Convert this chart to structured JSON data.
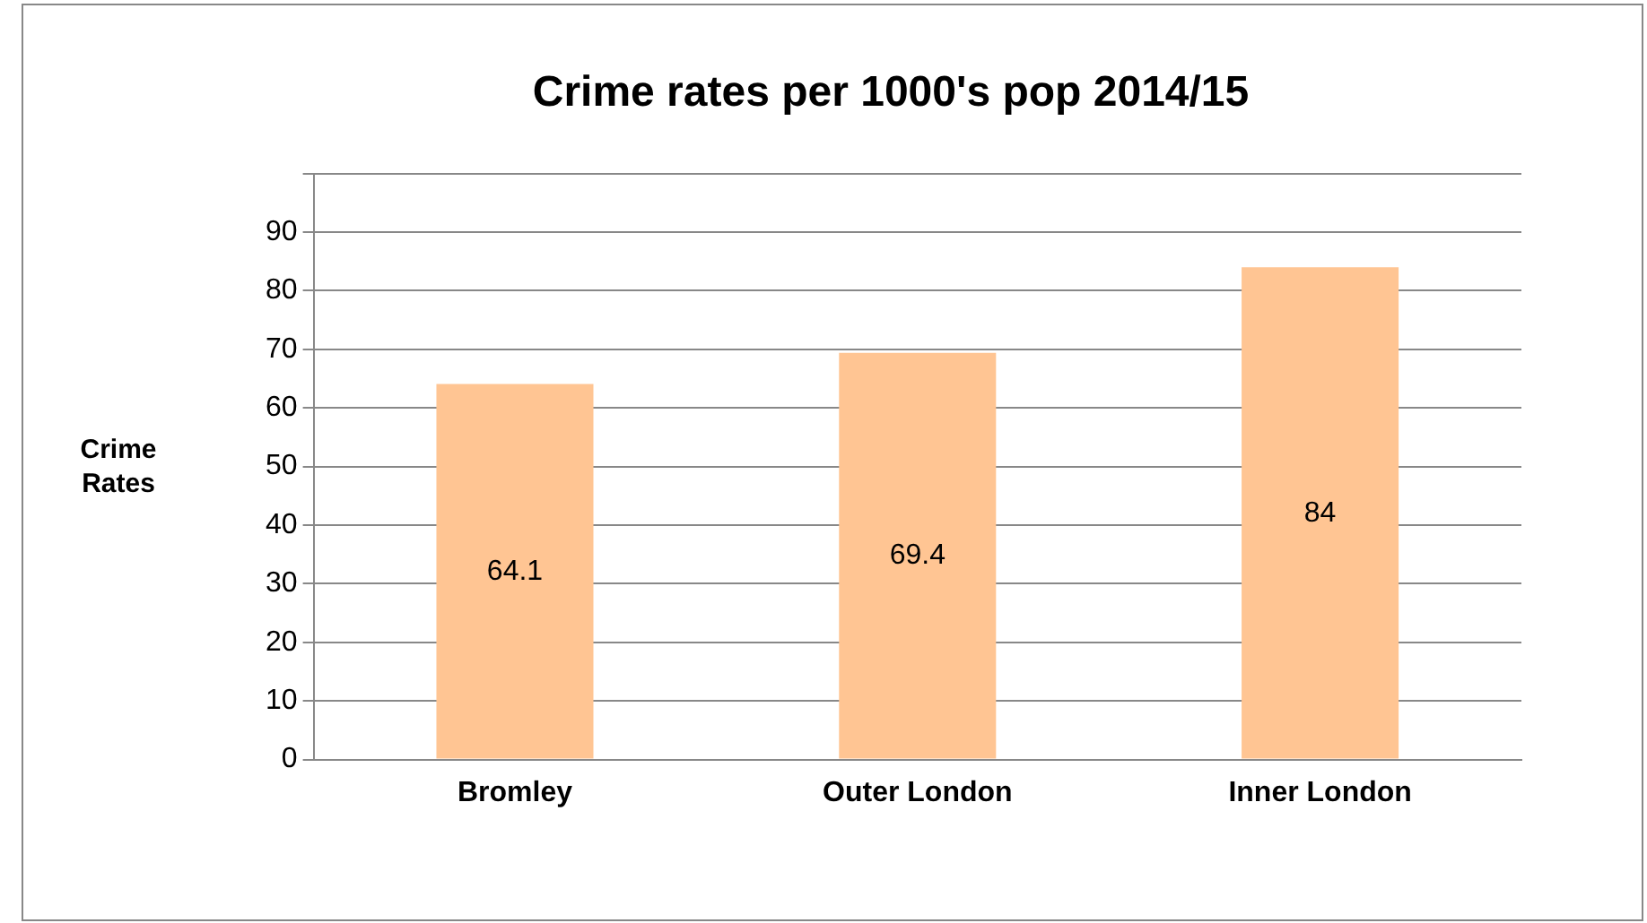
{
  "chart_data": {
    "type": "bar",
    "title": "Crime rates per 1000's pop 2014/15",
    "ylabel": "Crime Rates",
    "categories": [
      "Bromley",
      "Outer London",
      "Inner London"
    ],
    "values": [
      64.1,
      69.4,
      84
    ],
    "color": "#ffc593",
    "ylim": [
      0,
      100
    ],
    "yticks": [
      0,
      10,
      20,
      30,
      40,
      50,
      60,
      70,
      80,
      90,
      {
        "value": 100,
        "label": null
      }
    ],
    "grid": "y",
    "data_labels": true,
    "legend": false
  }
}
